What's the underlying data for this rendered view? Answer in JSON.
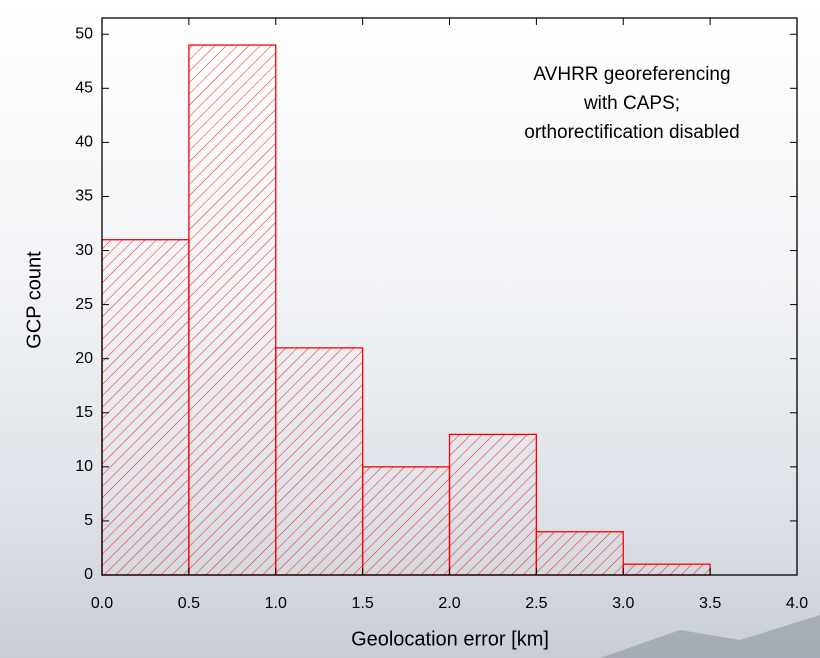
{
  "chart_data": {
    "type": "histogram",
    "xlabel": "Geolocation error [km]",
    "ylabel": "GCP count",
    "annotation": [
      "AVHRR georeferencing",
      "with CAPS;",
      "orthorectification disabled"
    ],
    "bins": [
      0,
      0.5,
      1,
      1.5,
      2,
      2.5,
      3,
      3.5
    ],
    "values": [
      31,
      49,
      21,
      10,
      13,
      4,
      1
    ],
    "color": "#ff0000",
    "xlim": [
      0,
      4
    ],
    "ylim": [
      0,
      51.5
    ],
    "xticks": [
      {
        "value": 0,
        "label": "0.0"
      },
      {
        "value": 0.5,
        "label": "0.5"
      },
      {
        "value": 1,
        "label": "1.0"
      },
      {
        "value": 1.5,
        "label": "1.5"
      },
      {
        "value": 2,
        "label": "2.0"
      },
      {
        "value": 2.5,
        "label": "2.5"
      },
      {
        "value": 3,
        "label": "3.0"
      },
      {
        "value": 3.5,
        "label": "3.5"
      },
      {
        "value": 4,
        "label": "4.0"
      }
    ],
    "yticks": [
      0,
      5,
      10,
      15,
      20,
      25,
      30,
      35,
      40,
      45,
      50
    ]
  }
}
